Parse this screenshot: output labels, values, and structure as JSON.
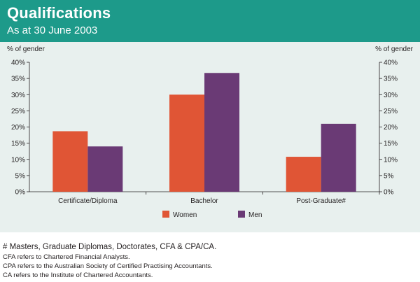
{
  "header": {
    "title": "Qualifications",
    "subtitle": "As at 30 June 2003",
    "background_color": "#1d9a8a"
  },
  "chart_data": {
    "type": "bar",
    "title": "Qualifications",
    "subtitle": "As at 30 June 2003",
    "categories": [
      "Certificate/Diploma",
      "Bachelor",
      "Post-Graduate#"
    ],
    "series": [
      {
        "name": "Women",
        "values": [
          18.7,
          30.0,
          10.8
        ],
        "color": "#e05535"
      },
      {
        "name": "Men",
        "values": [
          14.0,
          36.7,
          21.0
        ],
        "color": "#6a3a75"
      }
    ],
    "ylabel_left": "% of gender",
    "ylabel_right": "% of gender",
    "ylim": [
      0,
      40
    ],
    "yticks": [
      "0%",
      "5%",
      "10%",
      "15%",
      "20%",
      "25%",
      "30%",
      "35%",
      "40%"
    ],
    "legend_position": "bottom-center",
    "grid": false
  },
  "notes": {
    "main": "# Masters, Graduate Diplomas, Doctorates, CFA & CPA/CA.",
    "lines": [
      "CFA refers to Chartered Financial Analysts.",
      "CPA refers to the Australian Society of Certified Practising Accountants.",
      "CA refers to the Institute of Chartered Accountants."
    ]
  }
}
